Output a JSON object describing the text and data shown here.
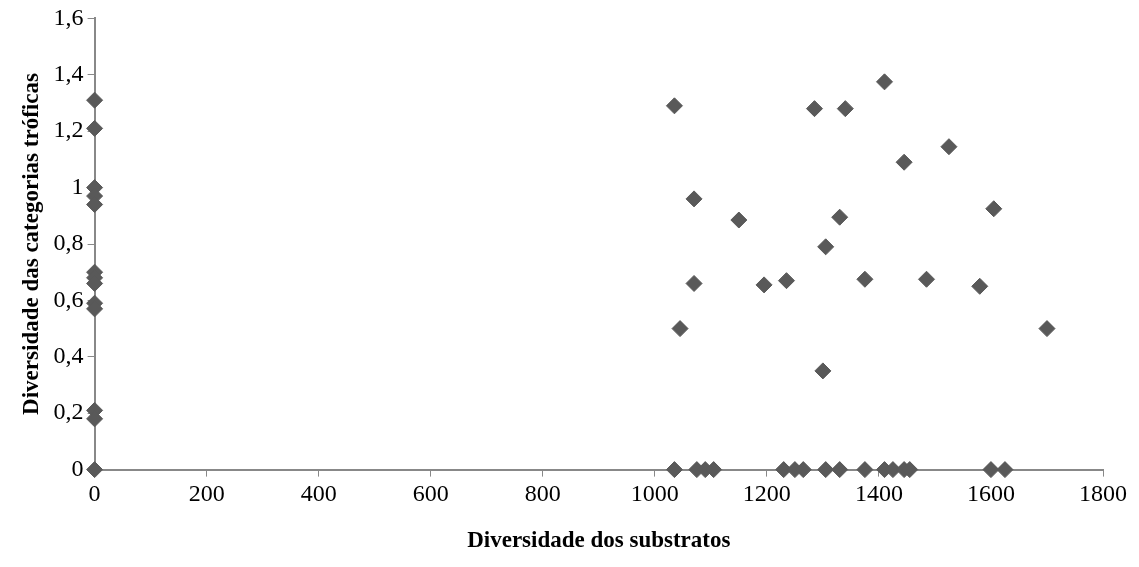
{
  "chart_data": {
    "type": "scatter",
    "xlabel": "Diversidade dos substratos",
    "ylabel": "Diversidade das categorias tróficas",
    "marker": "diamond",
    "grid": false,
    "legend": false,
    "xlim": [
      0,
      1800
    ],
    "xticks": [
      0,
      200,
      400,
      600,
      800,
      1000,
      1200,
      1400,
      1600,
      1800
    ],
    "ylim": [
      0,
      1.6
    ],
    "yticks": [
      0,
      {
        "value": 0.2,
        "label": "0,2"
      },
      {
        "value": 0.4,
        "label": "0,4"
      },
      {
        "value": 0.6,
        "label": "0,6"
      },
      {
        "value": 0.8,
        "label": "0,8"
      },
      1,
      {
        "value": 1.2,
        "label": "1,2"
      },
      {
        "value": 1.4,
        "label": "1,4"
      },
      {
        "value": 1.6,
        "label": "1,6"
      }
    ],
    "series": [
      {
        "color": "#595959",
        "x": [
          0,
          0,
          0,
          0,
          0,
          0,
          0,
          0,
          0,
          0,
          0,
          0,
          0,
          1035,
          1045,
          1070,
          1070,
          1150,
          1195,
          1235,
          1285,
          1300,
          1305,
          1330,
          1340,
          1375,
          1410,
          1445,
          1485,
          1525,
          1580,
          1605,
          1700,
          1035,
          1075,
          1090,
          1105,
          1230,
          1250,
          1265,
          1305,
          1330,
          1375,
          1410,
          1425,
          1445,
          1455,
          1600,
          1625
        ],
        "values": [
          1.31,
          1.21,
          1.0,
          0.97,
          0.94,
          0.7,
          0.68,
          0.66,
          0.59,
          0.57,
          0.21,
          0.18,
          0,
          1.29,
          0.5,
          0.96,
          0.66,
          0.885,
          0.655,
          0.67,
          1.28,
          0.35,
          0.79,
          0.895,
          1.28,
          0.675,
          1.375,
          1.09,
          0.675,
          1.145,
          0.65,
          0.925,
          0.5,
          0,
          0,
          0,
          0,
          0,
          0,
          0,
          0,
          0,
          0,
          0,
          0,
          0,
          0,
          0,
          0
        ]
      }
    ]
  }
}
